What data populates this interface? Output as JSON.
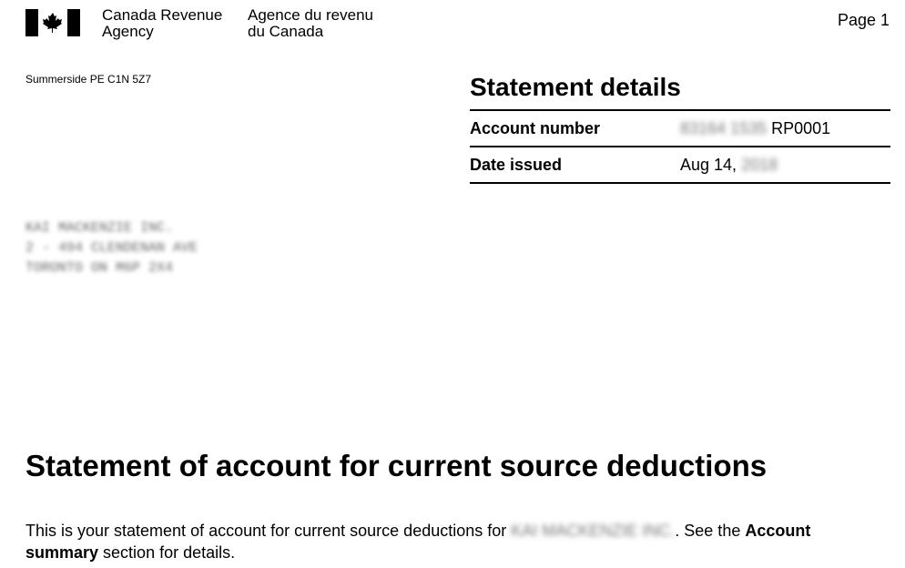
{
  "header": {
    "agency_en_1": "Canada Revenue",
    "agency_en_2": "Agency",
    "agency_fr_1": "Agence du revenu",
    "agency_fr_2": "du Canada",
    "page": "Page 1",
    "logo": "canada-flag-wordmark"
  },
  "sender_address": "Summerside PE  C1N 5Z7",
  "statement_details": {
    "title": "Statement details",
    "rows": [
      {
        "label": "Account number",
        "value_redacted": "83164 1535",
        "value": "RP0001"
      },
      {
        "label": "Date issued",
        "value": "Aug 14,",
        "value_redacted": "2018"
      }
    ]
  },
  "recipient_address": [
    "KAI MACKENZIE INC.",
    "2 - 494 CLENDENAN AVE",
    "TORONTO ON  M6P 2X4"
  ],
  "main": {
    "title": "Statement of account for current source deductions",
    "intro_1": "This is your statement of account for current source deductions for ",
    "intro_name": "KAI MACKENZIE INC.",
    "intro_2": ". See the ",
    "intro_bold_1": "Account",
    "intro_bold_2": "summary",
    "intro_3": " section for details."
  }
}
